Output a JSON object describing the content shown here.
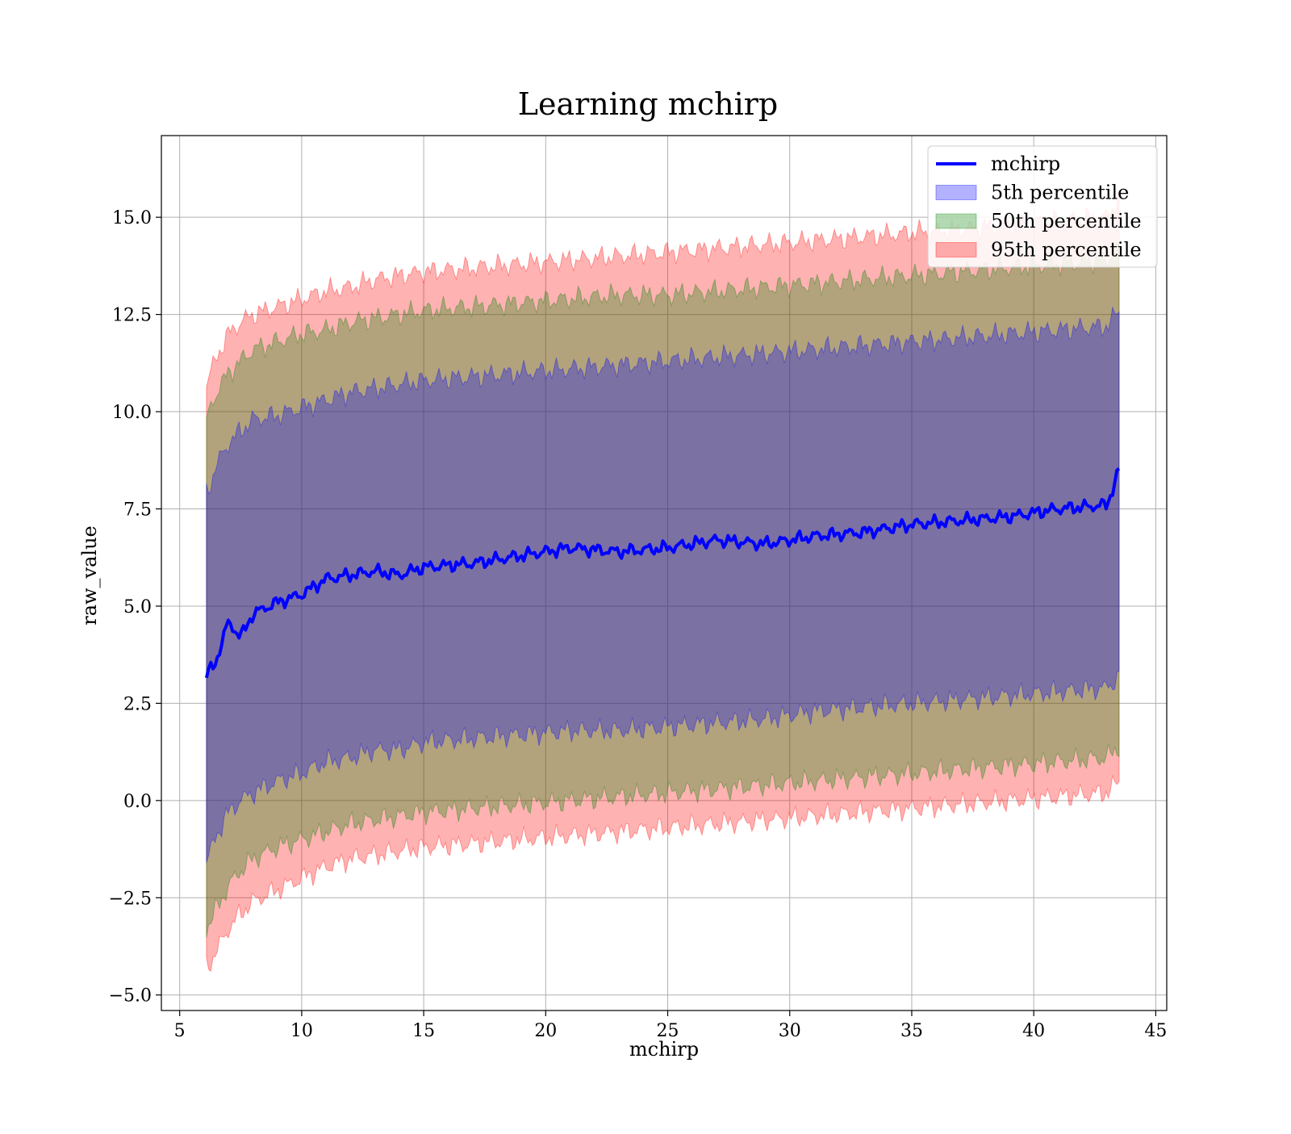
{
  "chart_data": {
    "type": "area",
    "title": "Learning mchirp",
    "xlabel": "mchirp",
    "ylabel": "raw_value",
    "xlim": [
      4.25,
      45.45
    ],
    "ylim": [
      -5.4,
      17.1
    ],
    "xticks": [
      5,
      10,
      15,
      20,
      25,
      30,
      35,
      40,
      45
    ],
    "xtick_labels": [
      "5",
      "10",
      "15",
      "20",
      "25",
      "30",
      "35",
      "40",
      "45"
    ],
    "yticks": [
      -5.0,
      -2.5,
      0.0,
      2.5,
      5.0,
      7.5,
      10.0,
      12.5,
      15.0
    ],
    "ytick_labels": [
      "−5.0",
      "−2.5",
      "0.0",
      "2.5",
      "5.0",
      "7.5",
      "10.0",
      "12.5",
      "15.0"
    ],
    "grid": true,
    "legend_position": "top-right",
    "x": [
      6.1,
      6.5,
      7.0,
      7.5,
      8.0,
      9.0,
      10.0,
      11.0,
      12.0,
      13.0,
      14.0,
      15.0,
      17.0,
      19.0,
      21.0,
      23.0,
      25.0,
      27.0,
      29.0,
      31.0,
      33.0,
      35.0,
      37.0,
      39.0,
      41.0,
      43.0,
      43.5
    ],
    "series": [
      {
        "name": "mchirp",
        "kind": "line",
        "color": "#0000ff",
        "values": [
          3.2,
          3.6,
          4.6,
          4.2,
          4.8,
          5.1,
          5.3,
          5.7,
          5.8,
          5.9,
          5.8,
          6.0,
          6.1,
          6.3,
          6.5,
          6.4,
          6.5,
          6.7,
          6.6,
          6.8,
          6.9,
          7.1,
          7.2,
          7.3,
          7.5,
          7.6,
          8.5
        ]
      },
      {
        "name": "5th percentile",
        "kind": "band",
        "color": "#0000ff",
        "lower": [
          -1.6,
          -0.9,
          -0.3,
          0.0,
          0.2,
          0.5,
          0.7,
          1.0,
          1.1,
          1.3,
          1.3,
          1.5,
          1.6,
          1.7,
          1.8,
          1.8,
          1.9,
          2.0,
          2.1,
          2.3,
          2.4,
          2.5,
          2.6,
          2.7,
          2.8,
          2.9,
          3.2
        ],
        "upper": [
          7.9,
          8.6,
          9.2,
          9.5,
          9.8,
          9.9,
          10.1,
          10.3,
          10.5,
          10.6,
          10.7,
          10.8,
          10.9,
          11.0,
          11.1,
          11.2,
          11.3,
          11.4,
          11.5,
          11.6,
          11.7,
          11.8,
          11.9,
          12.0,
          12.1,
          12.2,
          12.6
        ]
      },
      {
        "name": "50th percentile",
        "kind": "band",
        "color": "#008000",
        "lower": [
          -3.3,
          -2.8,
          -2.2,
          -1.8,
          -1.5,
          -1.2,
          -1.0,
          -0.8,
          -0.6,
          -0.5,
          -0.4,
          -0.3,
          -0.2,
          -0.1,
          0.0,
          0.1,
          0.2,
          0.3,
          0.4,
          0.5,
          0.6,
          0.7,
          0.8,
          0.9,
          1.0,
          1.1,
          1.4
        ],
        "upper": [
          9.8,
          10.5,
          11.0,
          11.3,
          11.6,
          11.8,
          12.0,
          12.1,
          12.3,
          12.4,
          12.5,
          12.6,
          12.7,
          12.8,
          12.9,
          13.0,
          13.0,
          13.1,
          13.2,
          13.3,
          13.4,
          13.5,
          13.6,
          13.7,
          13.8,
          13.9,
          14.3
        ]
      },
      {
        "name": "95th percentile",
        "kind": "band",
        "color": "#ff0000",
        "lower": [
          -4.3,
          -3.9,
          -3.3,
          -2.9,
          -2.6,
          -2.3,
          -2.0,
          -1.7,
          -1.5,
          -1.4,
          -1.3,
          -1.2,
          -1.1,
          -1.0,
          -0.9,
          -0.8,
          -0.7,
          -0.6,
          -0.5,
          -0.4,
          -0.3,
          -0.2,
          -0.1,
          0.0,
          0.1,
          0.2,
          0.5
        ],
        "upper": [
          10.7,
          11.4,
          12.0,
          12.3,
          12.5,
          12.7,
          12.9,
          13.1,
          13.2,
          13.4,
          13.5,
          13.6,
          13.7,
          13.8,
          13.9,
          14.0,
          14.1,
          14.2,
          14.3,
          14.4,
          14.5,
          14.6,
          14.7,
          14.8,
          14.9,
          15.0,
          15.5
        ]
      }
    ]
  }
}
